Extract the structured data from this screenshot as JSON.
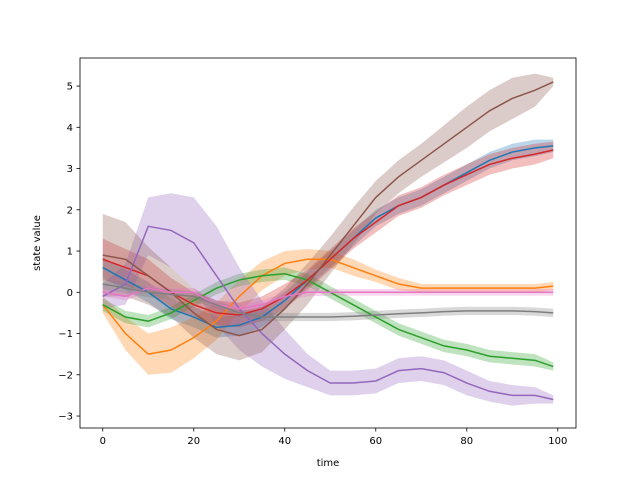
{
  "chart_data": {
    "type": "line",
    "title": "",
    "xlabel": "time",
    "ylabel": "state value",
    "xlim": [
      -5,
      104
    ],
    "ylim": [
      -3.29,
      5.68
    ],
    "xticks": [
      0,
      20,
      40,
      60,
      80,
      100
    ],
    "yticks": [
      -3,
      -2,
      -1,
      0,
      1,
      2,
      3,
      4,
      5
    ],
    "grid": false,
    "legend": "none",
    "band_opacity": 0.3,
    "x": [
      0,
      5,
      10,
      15,
      20,
      25,
      30,
      35,
      40,
      45,
      50,
      55,
      60,
      65,
      70,
      75,
      80,
      85,
      90,
      95,
      99
    ],
    "series": [
      {
        "color": "#1f77b4",
        "values": [
          0.6,
          0.3,
          0,
          -0.4,
          -0.6,
          -0.85,
          -0.8,
          -0.6,
          -0.2,
          0.3,
          0.8,
          1.3,
          1.8,
          2.1,
          2.3,
          2.6,
          2.9,
          3.2,
          3.4,
          3.5,
          3.55
        ],
        "spread": [
          0.25,
          0.25,
          0.25,
          0.25,
          0.25,
          0.25,
          0.25,
          0.25,
          0.2,
          0.2,
          0.2,
          0.2,
          0.2,
          0.2,
          0.2,
          0.2,
          0.2,
          0.2,
          0.2,
          0.2,
          0.15
        ]
      },
      {
        "color": "#ff7f0e",
        "values": [
          -0.3,
          -1.0,
          -1.5,
          -1.4,
          -1.1,
          -0.7,
          -0.1,
          0.4,
          0.7,
          0.8,
          0.8,
          0.6,
          0.4,
          0.2,
          0.1,
          0.1,
          0.1,
          0.1,
          0.1,
          0.1,
          0.15
        ],
        "spread": [
          0.2,
          0.4,
          0.5,
          0.55,
          0.5,
          0.45,
          0.4,
          0.35,
          0.3,
          0.25,
          0.2,
          0.2,
          0.15,
          0.15,
          0.1,
          0.1,
          0.1,
          0.1,
          0.1,
          0.1,
          0.1
        ]
      },
      {
        "color": "#2ca02c",
        "values": [
          -0.3,
          -0.6,
          -0.7,
          -0.5,
          -0.2,
          0.1,
          0.3,
          0.4,
          0.45,
          0.3,
          0,
          -0.3,
          -0.6,
          -0.9,
          -1.1,
          -1.3,
          -1.4,
          -1.55,
          -1.6,
          -1.65,
          -1.8
        ],
        "spread": [
          0.15,
          0.15,
          0.15,
          0.15,
          0.15,
          0.15,
          0.15,
          0.15,
          0.15,
          0.15,
          0.15,
          0.15,
          0.15,
          0.15,
          0.15,
          0.15,
          0.15,
          0.15,
          0.15,
          0.15,
          0.1
        ]
      },
      {
        "color": "#d62728",
        "values": [
          0.8,
          0.6,
          0.4,
          0,
          -0.3,
          -0.5,
          -0.55,
          -0.4,
          -0.1,
          0.3,
          0.8,
          1.3,
          1.7,
          2.1,
          2.3,
          2.6,
          2.85,
          3.1,
          3.25,
          3.35,
          3.45
        ],
        "spread": [
          0.5,
          0.45,
          0.4,
          0.35,
          0.3,
          0.3,
          0.3,
          0.3,
          0.3,
          0.25,
          0.25,
          0.25,
          0.25,
          0.25,
          0.25,
          0.25,
          0.25,
          0.25,
          0.25,
          0.25,
          0.2
        ]
      },
      {
        "color": "#9467bd",
        "values": [
          -0.1,
          0.2,
          1.6,
          1.5,
          1.2,
          0.4,
          -0.4,
          -1.0,
          -1.5,
          -1.9,
          -2.2,
          -2.2,
          -2.15,
          -1.9,
          -1.85,
          -1.95,
          -2.2,
          -2.4,
          -2.5,
          -2.5,
          -2.6
        ],
        "spread": [
          0.3,
          0.5,
          0.7,
          0.9,
          1.1,
          1.2,
          1.0,
          0.8,
          0.6,
          0.4,
          0.3,
          0.3,
          0.3,
          0.3,
          0.3,
          0.3,
          0.3,
          0.25,
          0.25,
          0.2,
          0.1
        ]
      },
      {
        "color": "#8c564b",
        "values": [
          0.9,
          0.8,
          0.4,
          0,
          -0.5,
          -0.9,
          -1.05,
          -0.9,
          -0.4,
          0.2,
          0.9,
          1.6,
          2.3,
          2.8,
          3.2,
          3.6,
          4.0,
          4.4,
          4.7,
          4.9,
          5.1
        ],
        "spread": [
          1.0,
          0.9,
          0.7,
          0.6,
          0.6,
          0.6,
          0.6,
          0.55,
          0.5,
          0.5,
          0.45,
          0.45,
          0.4,
          0.4,
          0.4,
          0.45,
          0.5,
          0.5,
          0.5,
          0.4,
          0.1
        ]
      },
      {
        "color": "#e377c2",
        "values": [
          0,
          -0.1,
          0.1,
          0,
          0,
          -0.3,
          -0.4,
          -0.3,
          -0.1,
          0,
          0,
          0,
          0,
          0,
          0,
          0,
          0,
          0,
          0,
          0,
          0
        ],
        "spread": [
          0.1,
          0.1,
          0.1,
          0.1,
          0.1,
          0.1,
          0.1,
          0.1,
          0.1,
          0.1,
          0.08,
          0.08,
          0.08,
          0.08,
          0.08,
          0.08,
          0.08,
          0.08,
          0.08,
          0.08,
          0.08
        ]
      },
      {
        "color": "#7f7f7f",
        "values": [
          0.2,
          0.1,
          0,
          -0.05,
          -0.1,
          -0.3,
          -0.5,
          -0.6,
          -0.6,
          -0.6,
          -0.6,
          -0.58,
          -0.55,
          -0.52,
          -0.5,
          -0.47,
          -0.45,
          -0.45,
          -0.45,
          -0.47,
          -0.5
        ],
        "spread": [
          0.12,
          0.12,
          0.12,
          0.12,
          0.12,
          0.1,
          0.1,
          0.1,
          0.1,
          0.1,
          0.1,
          0.1,
          0.1,
          0.1,
          0.1,
          0.1,
          0.1,
          0.1,
          0.1,
          0.1,
          0.1
        ]
      }
    ]
  }
}
